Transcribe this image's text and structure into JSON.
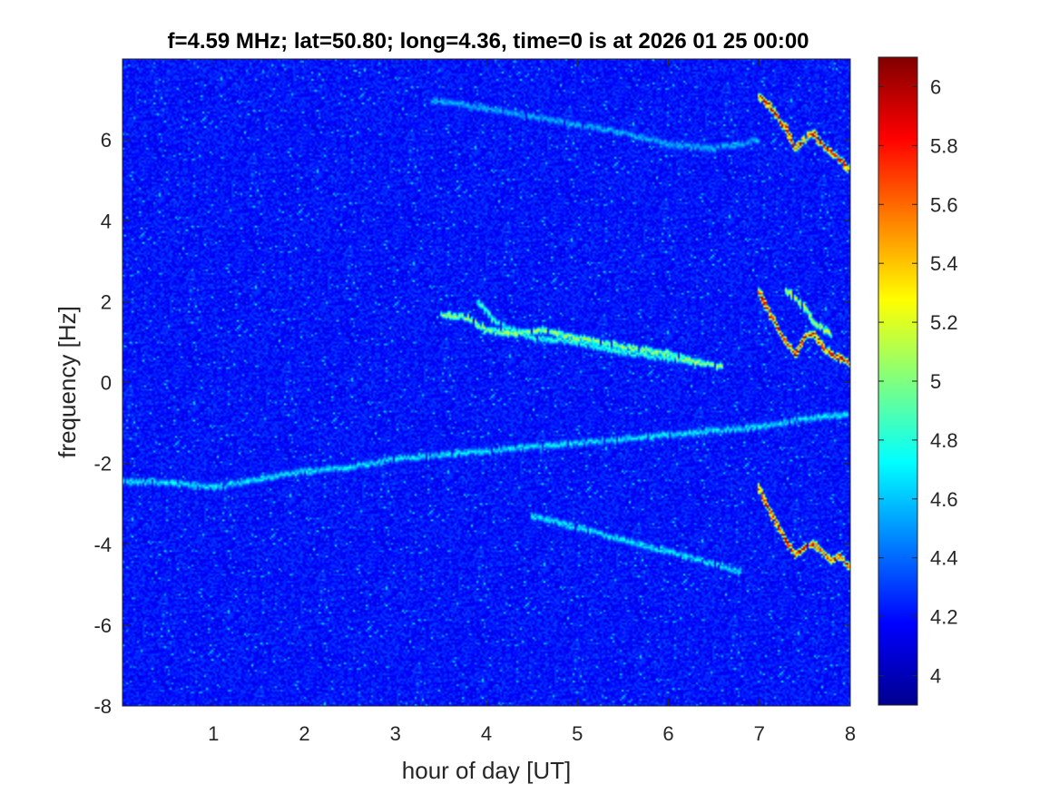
{
  "chart_data": {
    "type": "heatmap",
    "title": "f=4.59 MHz;  lat=50.80; long=4.36, time=0 is at 2026 01 25 00:00",
    "xlabel": "hour of day [UT]",
    "ylabel": "frequency [Hz]",
    "xlim": [
      0,
      8
    ],
    "ylim": [
      -8,
      8
    ],
    "x_ticks": [
      1,
      2,
      3,
      4,
      5,
      6,
      7,
      8
    ],
    "x_tick_labels": [
      "1",
      "2",
      "3",
      "4",
      "5",
      "6",
      "7",
      "8"
    ],
    "y_ticks": [
      -8,
      -6,
      -4,
      -2,
      0,
      2,
      4,
      6
    ],
    "y_tick_labels": [
      "-8",
      "-6",
      "-4",
      "-2",
      "0",
      "2",
      "4",
      "6"
    ],
    "colormap": "jet",
    "colorbar": {
      "range": [
        3.9,
        6.1
      ],
      "ticks": [
        4,
        4.2,
        4.4,
        4.6,
        4.8,
        5,
        5.2,
        5.4,
        5.6,
        5.8,
        6
      ],
      "tick_labels": [
        "4",
        "4.2",
        "4.4",
        "4.6",
        "4.8",
        "5",
        "5.2",
        "5.4",
        "5.6",
        "5.8",
        "6"
      ]
    },
    "background_level": 4.2,
    "traces": [
      {
        "points": [
          [
            3.5,
            1.7
          ],
          [
            3.8,
            1.6
          ],
          [
            4.0,
            1.3
          ],
          [
            4.3,
            1.2
          ],
          [
            4.6,
            1.3
          ],
          [
            5.0,
            1.1
          ],
          [
            5.5,
            0.9
          ],
          [
            6.0,
            0.7
          ],
          [
            6.3,
            0.5
          ],
          [
            6.6,
            0.4
          ]
        ],
        "peak": 5.2
      },
      {
        "points": [
          [
            3.9,
            2.0
          ],
          [
            4.1,
            1.5
          ],
          [
            4.5,
            1.1
          ],
          [
            5.0,
            1.0
          ],
          [
            5.4,
            0.8
          ],
          [
            6.0,
            0.6
          ],
          [
            6.4,
            0.5
          ]
        ],
        "peak": 4.9
      },
      {
        "points": [
          [
            0.0,
            -2.45
          ],
          [
            0.5,
            -2.5
          ],
          [
            1.0,
            -2.6
          ],
          [
            1.5,
            -2.4
          ],
          [
            2.0,
            -2.2
          ],
          [
            2.5,
            -2.1
          ],
          [
            3.0,
            -1.9
          ],
          [
            3.5,
            -1.8
          ],
          [
            4.0,
            -1.7
          ],
          [
            4.5,
            -1.6
          ],
          [
            5.0,
            -1.5
          ],
          [
            5.5,
            -1.4
          ],
          [
            6.0,
            -1.3
          ],
          [
            6.5,
            -1.2
          ],
          [
            7.0,
            -1.1
          ],
          [
            7.5,
            -0.9
          ],
          [
            8.0,
            -0.8
          ]
        ],
        "peak": 4.75
      },
      {
        "points": [
          [
            3.4,
            7.0
          ],
          [
            4.0,
            6.8
          ],
          [
            4.5,
            6.6
          ],
          [
            5.0,
            6.4
          ],
          [
            5.5,
            6.2
          ],
          [
            6.0,
            5.9
          ],
          [
            6.5,
            5.8
          ],
          [
            7.0,
            6.0
          ]
        ],
        "peak": 4.6
      },
      {
        "points": [
          [
            4.5,
            -3.3
          ],
          [
            5.0,
            -3.6
          ],
          [
            5.5,
            -3.9
          ],
          [
            6.0,
            -4.2
          ],
          [
            6.5,
            -4.5
          ],
          [
            6.8,
            -4.7
          ]
        ],
        "peak": 4.75
      },
      {
        "points": [
          [
            7.0,
            7.1
          ],
          [
            7.1,
            6.9
          ],
          [
            7.2,
            6.6
          ],
          [
            7.3,
            6.3
          ],
          [
            7.4,
            5.8
          ],
          [
            7.5,
            6.0
          ],
          [
            7.6,
            6.2
          ],
          [
            7.7,
            5.9
          ],
          [
            7.8,
            5.7
          ],
          [
            7.9,
            5.5
          ],
          [
            8.0,
            5.3
          ]
        ],
        "peak": 6.0
      },
      {
        "points": [
          [
            7.0,
            2.3
          ],
          [
            7.1,
            1.8
          ],
          [
            7.2,
            1.4
          ],
          [
            7.3,
            1.0
          ],
          [
            7.4,
            0.7
          ],
          [
            7.5,
            1.1
          ],
          [
            7.6,
            1.2
          ],
          [
            7.7,
            0.9
          ],
          [
            7.8,
            0.7
          ],
          [
            7.9,
            0.6
          ],
          [
            8.0,
            0.5
          ]
        ],
        "peak": 6.0
      },
      {
        "points": [
          [
            7.0,
            -2.6
          ],
          [
            7.1,
            -3.1
          ],
          [
            7.2,
            -3.5
          ],
          [
            7.3,
            -3.9
          ],
          [
            7.4,
            -4.3
          ],
          [
            7.5,
            -4.1
          ],
          [
            7.6,
            -4.0
          ],
          [
            7.7,
            -4.2
          ],
          [
            7.8,
            -4.4
          ],
          [
            7.9,
            -4.3
          ],
          [
            8.0,
            -4.6
          ]
        ],
        "peak": 6.0
      },
      {
        "points": [
          [
            7.3,
            2.3
          ],
          [
            7.5,
            1.9
          ],
          [
            7.6,
            1.5
          ],
          [
            7.8,
            1.2
          ]
        ],
        "peak": 5.3
      }
    ]
  }
}
